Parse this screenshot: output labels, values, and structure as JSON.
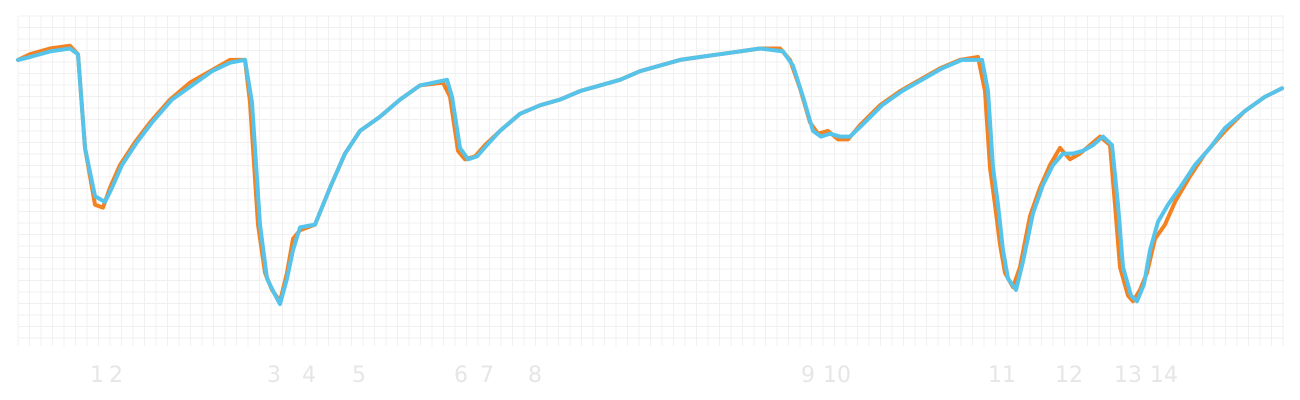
{
  "chart_data": {
    "type": "line",
    "title": "",
    "xlabel": "",
    "ylabel": "",
    "grid": true,
    "xlim": [
      0,
      1300
    ],
    "ylim": [
      0,
      100
    ],
    "x_ticks": [
      {
        "label": "1",
        "x": 97
      },
      {
        "label": "2",
        "x": 116
      },
      {
        "label": "3",
        "x": 274
      },
      {
        "label": "4",
        "x": 309
      },
      {
        "label": "5",
        "x": 359
      },
      {
        "label": "6",
        "x": 461
      },
      {
        "label": "7",
        "x": 487
      },
      {
        "label": "8",
        "x": 535
      },
      {
        "label": "9",
        "x": 808
      },
      {
        "label": "10",
        "x": 837
      },
      {
        "label": "11",
        "x": 1002
      },
      {
        "label": "12",
        "x": 1069
      },
      {
        "label": "13",
        "x": 1128
      },
      {
        "label": "14",
        "x": 1164
      }
    ],
    "series": [
      {
        "color": "#f58220",
        "points": [
          [
            18,
            93
          ],
          [
            30,
            95
          ],
          [
            50,
            97
          ],
          [
            70,
            98
          ],
          [
            78,
            95
          ],
          [
            85,
            62
          ],
          [
            95,
            42
          ],
          [
            103,
            41
          ],
          [
            110,
            48
          ],
          [
            120,
            56
          ],
          [
            135,
            64
          ],
          [
            150,
            71
          ],
          [
            170,
            79
          ],
          [
            190,
            85
          ],
          [
            210,
            89
          ],
          [
            230,
            93
          ],
          [
            245,
            93
          ],
          [
            250,
            78
          ],
          [
            258,
            35
          ],
          [
            265,
            18
          ],
          [
            272,
            12
          ],
          [
            280,
            8
          ],
          [
            287,
            18
          ],
          [
            293,
            30
          ],
          [
            300,
            33
          ],
          [
            315,
            35
          ],
          [
            330,
            48
          ],
          [
            345,
            60
          ],
          [
            360,
            68
          ],
          [
            380,
            73
          ],
          [
            400,
            79
          ],
          [
            420,
            84
          ],
          [
            443,
            85
          ],
          [
            450,
            80
          ],
          [
            458,
            61
          ],
          [
            465,
            58
          ],
          [
            475,
            59
          ],
          [
            485,
            63
          ],
          [
            500,
            68
          ],
          [
            520,
            74
          ],
          [
            540,
            77
          ],
          [
            560,
            79
          ],
          [
            580,
            82
          ],
          [
            600,
            84
          ],
          [
            620,
            86
          ],
          [
            640,
            89
          ],
          [
            660,
            91
          ],
          [
            680,
            93
          ],
          [
            700,
            94
          ],
          [
            720,
            95
          ],
          [
            740,
            96
          ],
          [
            760,
            97
          ],
          [
            780,
            97
          ],
          [
            790,
            93
          ],
          [
            800,
            83
          ],
          [
            810,
            71
          ],
          [
            818,
            67
          ],
          [
            828,
            68
          ],
          [
            838,
            65
          ],
          [
            848,
            65
          ],
          [
            860,
            70
          ],
          [
            880,
            77
          ],
          [
            900,
            82
          ],
          [
            920,
            86
          ],
          [
            940,
            90
          ],
          [
            960,
            93
          ],
          [
            978,
            94
          ],
          [
            985,
            82
          ],
          [
            990,
            55
          ],
          [
            995,
            42
          ],
          [
            1000,
            28
          ],
          [
            1005,
            18
          ],
          [
            1013,
            13
          ],
          [
            1020,
            20
          ],
          [
            1030,
            38
          ],
          [
            1040,
            48
          ],
          [
            1050,
            56
          ],
          [
            1060,
            62
          ],
          [
            1070,
            58
          ],
          [
            1080,
            60
          ],
          [
            1090,
            63
          ],
          [
            1100,
            66
          ],
          [
            1110,
            63
          ],
          [
            1115,
            42
          ],
          [
            1120,
            20
          ],
          [
            1128,
            10
          ],
          [
            1133,
            8
          ],
          [
            1140,
            12
          ],
          [
            1147,
            18
          ],
          [
            1155,
            30
          ],
          [
            1165,
            35
          ],
          [
            1175,
            43
          ],
          [
            1190,
            52
          ],
          [
            1205,
            60
          ],
          [
            1225,
            68
          ],
          [
            1245,
            75
          ],
          [
            1265,
            80
          ],
          [
            1282,
            83
          ]
        ]
      },
      {
        "color": "#56c3ea",
        "points": [
          [
            18,
            93
          ],
          [
            30,
            94
          ],
          [
            50,
            96
          ],
          [
            70,
            97
          ],
          [
            78,
            95
          ],
          [
            85,
            62
          ],
          [
            95,
            45
          ],
          [
            105,
            43
          ],
          [
            112,
            48
          ],
          [
            122,
            56
          ],
          [
            137,
            64
          ],
          [
            152,
            71
          ],
          [
            172,
            79
          ],
          [
            192,
            84
          ],
          [
            212,
            89
          ],
          [
            230,
            92
          ],
          [
            245,
            93
          ],
          [
            252,
            78
          ],
          [
            260,
            35
          ],
          [
            267,
            16
          ],
          [
            274,
            11
          ],
          [
            280,
            7
          ],
          [
            287,
            16
          ],
          [
            293,
            26
          ],
          [
            300,
            34
          ],
          [
            315,
            35
          ],
          [
            330,
            48
          ],
          [
            345,
            60
          ],
          [
            360,
            68
          ],
          [
            380,
            73
          ],
          [
            400,
            79
          ],
          [
            420,
            84
          ],
          [
            447,
            86
          ],
          [
            452,
            80
          ],
          [
            460,
            62
          ],
          [
            468,
            58
          ],
          [
            477,
            59
          ],
          [
            487,
            63
          ],
          [
            500,
            68
          ],
          [
            520,
            74
          ],
          [
            540,
            77
          ],
          [
            560,
            79
          ],
          [
            580,
            82
          ],
          [
            600,
            84
          ],
          [
            620,
            86
          ],
          [
            640,
            89
          ],
          [
            660,
            91
          ],
          [
            680,
            93
          ],
          [
            700,
            94
          ],
          [
            720,
            95
          ],
          [
            740,
            96
          ],
          [
            760,
            97
          ],
          [
            783,
            96
          ],
          [
            793,
            91
          ],
          [
            803,
            80
          ],
          [
            813,
            68
          ],
          [
            821,
            66
          ],
          [
            830,
            67
          ],
          [
            840,
            66
          ],
          [
            850,
            66
          ],
          [
            862,
            70
          ],
          [
            882,
            77
          ],
          [
            902,
            82
          ],
          [
            922,
            86
          ],
          [
            942,
            90
          ],
          [
            962,
            93
          ],
          [
            982,
            93
          ],
          [
            988,
            82
          ],
          [
            993,
            55
          ],
          [
            998,
            42
          ],
          [
            1003,
            26
          ],
          [
            1008,
            16
          ],
          [
            1016,
            12
          ],
          [
            1023,
            22
          ],
          [
            1033,
            39
          ],
          [
            1043,
            49
          ],
          [
            1053,
            56
          ],
          [
            1063,
            60
          ],
          [
            1073,
            60
          ],
          [
            1083,
            61
          ],
          [
            1093,
            63
          ],
          [
            1103,
            66
          ],
          [
            1112,
            63
          ],
          [
            1118,
            42
          ],
          [
            1123,
            20
          ],
          [
            1131,
            10
          ],
          [
            1137,
            8
          ],
          [
            1144,
            14
          ],
          [
            1150,
            26
          ],
          [
            1158,
            36
          ],
          [
            1168,
            42
          ],
          [
            1180,
            48
          ],
          [
            1195,
            56
          ],
          [
            1210,
            62
          ],
          [
            1225,
            69
          ],
          [
            1245,
            75
          ],
          [
            1265,
            80
          ],
          [
            1282,
            83
          ]
        ]
      }
    ]
  }
}
